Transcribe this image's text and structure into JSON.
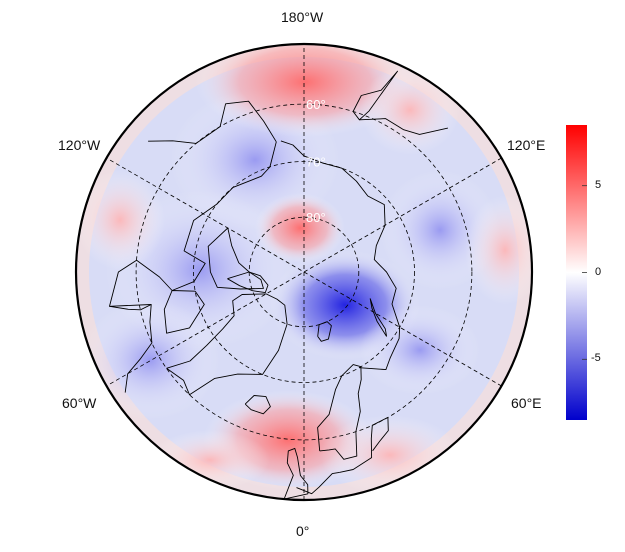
{
  "map": {
    "projection": "north-polar-stereographic",
    "fill_variable_range": [
      -8.5,
      8.5
    ],
    "longitude_labels": {
      "top": "180°W",
      "bottom": "0°",
      "upper_left": "120°W",
      "upper_right": "120°E",
      "lower_left": "60°W",
      "lower_right": "60°E"
    },
    "latitude_labels": [
      "60°",
      "70°",
      "80°"
    ],
    "graticule": {
      "latitudes": [
        60,
        70,
        80
      ],
      "meridian_step_deg": 60,
      "style": "dashed"
    },
    "colors": {
      "low": "#0000cc",
      "mid": "#ffffff",
      "high": "#ff0000",
      "coast": "#000000"
    }
  },
  "colorbar": {
    "ticks": [
      {
        "value": 5,
        "label": "5"
      },
      {
        "value": 0,
        "label": "0"
      },
      {
        "value": -5,
        "label": "-5"
      }
    ],
    "range": [
      -8.5,
      8.5
    ],
    "gradient": [
      "#0000cc",
      "#ffffff",
      "#ff0000"
    ]
  }
}
